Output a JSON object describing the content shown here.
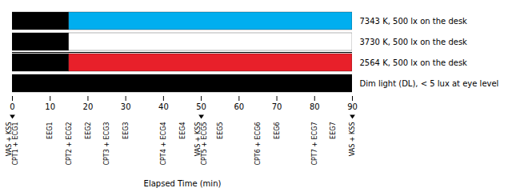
{
  "chart_data": {
    "type": "bar",
    "orientation": "horizontal",
    "stacked": true,
    "xlabel": "Elapsed Time (min)",
    "categories": [
      "7343 K, 500 lx on the desk",
      "3730 K, 500 lx on the desk",
      "2564 K, 500 lx on the desk",
      "Dim light (DL), < 5 lux at eye level"
    ],
    "series": [
      {
        "color": "#000000",
        "values": [
          15,
          15,
          15,
          90
        ]
      },
      {
        "colors": [
          "#00AEEF",
          "#FFFFFF",
          "#E8202A",
          "#000000"
        ],
        "values": [
          75,
          75,
          75,
          0
        ]
      }
    ],
    "xlim": [
      0,
      90
    ],
    "xticks": [
      0,
      10,
      20,
      30,
      40,
      50,
      60,
      70,
      80,
      90
    ],
    "annotations": [
      {
        "x": 0,
        "text": "VAS + KSS\nCPT1 + ECG1",
        "marker": "triangle-down"
      },
      {
        "x": 10,
        "text": "EEG1"
      },
      {
        "x": 15,
        "text": "CPT2 + ECG2"
      },
      {
        "x": 20,
        "text": "EEG2"
      },
      {
        "x": 25,
        "text": "CPT3 + ECG3"
      },
      {
        "x": 30,
        "text": "EEG3"
      },
      {
        "x": 40,
        "text": "CPT4 + ECG4"
      },
      {
        "x": 45,
        "text": "EEG4"
      },
      {
        "x": 50,
        "text": "VAS + KSS\nCPT5 + ECG5",
        "marker": "triangle-down"
      },
      {
        "x": 55,
        "text": "EEG5"
      },
      {
        "x": 65,
        "text": "CPT6 + ECG6"
      },
      {
        "x": 70,
        "text": "EEG6"
      },
      {
        "x": 80,
        "text": "CPT7 + ECG7"
      },
      {
        "x": 85,
        "text": "EEG7"
      },
      {
        "x": 90,
        "text": "VAS + KSS",
        "marker": "triangle-down"
      }
    ]
  }
}
